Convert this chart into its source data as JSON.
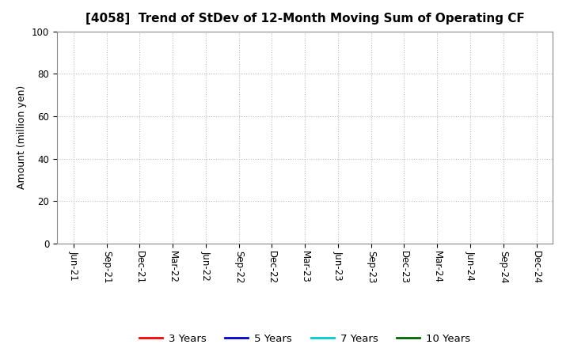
{
  "title": "[4058]  Trend of StDev of 12-Month Moving Sum of Operating CF",
  "ylabel": "Amount (million yen)",
  "ylim": [
    0,
    100
  ],
  "yticks": [
    0,
    20,
    40,
    60,
    80,
    100
  ],
  "background_color": "#ffffff",
  "plot_bg_color": "#ffffff",
  "grid_color": "#bbbbbb",
  "x_labels": [
    "Jun-21",
    "Sep-21",
    "Dec-21",
    "Mar-22",
    "Jun-22",
    "Sep-22",
    "Dec-22",
    "Mar-23",
    "Jun-23",
    "Sep-23",
    "Dec-23",
    "Mar-24",
    "Jun-24",
    "Sep-24",
    "Dec-24"
  ],
  "legend_entries": [
    {
      "label": "3 Years",
      "color": "#ff0000",
      "lw": 2
    },
    {
      "label": "5 Years",
      "color": "#0000cc",
      "lw": 2
    },
    {
      "label": "7 Years",
      "color": "#00cccc",
      "lw": 2
    },
    {
      "label": "10 Years",
      "color": "#006600",
      "lw": 2
    }
  ],
  "title_fontsize": 11,
  "tick_fontsize": 8.5,
  "ylabel_fontsize": 9,
  "legend_fontsize": 9.5
}
